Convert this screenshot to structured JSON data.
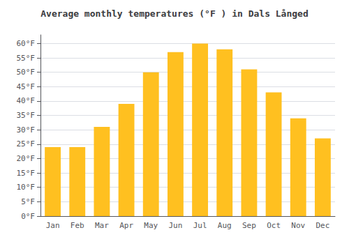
{
  "chart_data": {
    "type": "bar",
    "title": "Average monthly temperatures (°F ) in Dals Långed",
    "categories": [
      "Jan",
      "Feb",
      "Mar",
      "Apr",
      "May",
      "Jun",
      "Jul",
      "Aug",
      "Sep",
      "Oct",
      "Nov",
      "Dec"
    ],
    "values": [
      24,
      24,
      31,
      39,
      50,
      57,
      60,
      58,
      51,
      43,
      34,
      27
    ],
    "color": "#FFC020",
    "ylim": [
      0,
      63
    ],
    "yticks": [
      {
        "value": 0,
        "label": "0°F"
      },
      {
        "value": 5,
        "label": "5°F"
      },
      {
        "value": 10,
        "label": "10°F"
      },
      {
        "value": 15,
        "label": "15°F"
      },
      {
        "value": 20,
        "label": "20°F"
      },
      {
        "value": 25,
        "label": "25°F"
      },
      {
        "value": 30,
        "label": "30°F"
      },
      {
        "value": 35,
        "label": "35°F"
      },
      {
        "value": 40,
        "label": "40°F"
      },
      {
        "value": 45,
        "label": "45°F"
      },
      {
        "value": 50,
        "label": "50°F"
      },
      {
        "value": 55,
        "label": "55°F"
      },
      {
        "value": 60,
        "label": "60°F"
      }
    ],
    "grid": true
  }
}
